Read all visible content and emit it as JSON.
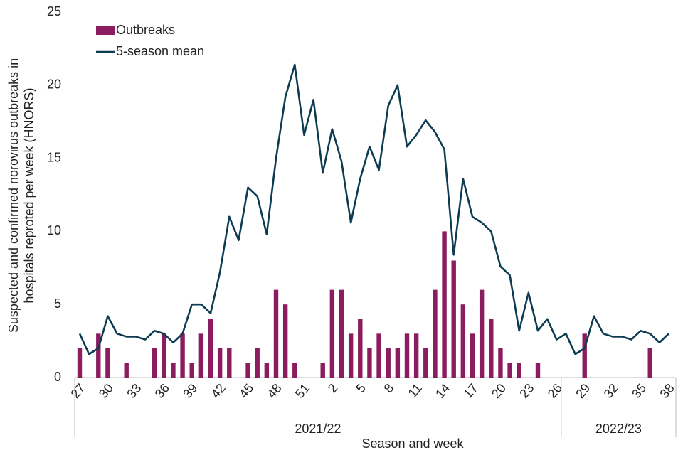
{
  "chart_data": {
    "type": "bar_line",
    "ylabel": [
      "Suspected and confirmed norovirus outbreaks in",
      "hospitals  reproted per week (HNORS)"
    ],
    "xlabel": "Season and week",
    "ylim": [
      0,
      25
    ],
    "yticks": [
      0,
      5,
      10,
      15,
      20,
      25
    ],
    "legend": "top-left",
    "groups": [
      {
        "label": "2021/22",
        "categories": [
          "27",
          null,
          null,
          "30",
          null,
          null,
          "33",
          null,
          null,
          "36",
          null,
          null,
          "39",
          null,
          null,
          "42",
          null,
          null,
          "45",
          null,
          null,
          "48",
          null,
          null,
          "51",
          null,
          null,
          "2",
          null,
          null,
          "5",
          null,
          null,
          "8",
          null,
          null,
          "11",
          null,
          null,
          "14",
          null,
          null,
          "17",
          null,
          null,
          "20",
          null,
          null,
          "23",
          null,
          null,
          "26"
        ]
      },
      {
        "label": "2022/23",
        "categories": [
          null,
          null,
          "29",
          null,
          null,
          "32",
          null,
          null,
          "35",
          null,
          null,
          "38"
        ]
      }
    ],
    "series": [
      {
        "name": "Outbreaks",
        "kind": "bar",
        "color": "#8a1c5f",
        "values": [
          2,
          0,
          3,
          2,
          0,
          1,
          0,
          0,
          2,
          3,
          1,
          3,
          1,
          3,
          4,
          2,
          2,
          0,
          1,
          2,
          1,
          6,
          5,
          1,
          0,
          0,
          1,
          6,
          6,
          3,
          4,
          2,
          3,
          2,
          2,
          3,
          3,
          2,
          6,
          10,
          8,
          5,
          3,
          6,
          4,
          2,
          1,
          1,
          0,
          1,
          0,
          0,
          0,
          0,
          3,
          0,
          0,
          0,
          0,
          0,
          0,
          2,
          0,
          0
        ]
      },
      {
        "name": "5-season mean",
        "kind": "line",
        "color": "#0d3b52",
        "values": [
          3,
          1.6,
          2,
          4.2,
          3,
          2.8,
          2.8,
          2.6,
          3.2,
          3,
          2.4,
          3,
          5,
          5,
          4.4,
          7.2,
          11,
          9.4,
          13,
          12.4,
          9.8,
          15,
          19.2,
          21.4,
          16.6,
          19,
          14,
          17,
          14.8,
          10.6,
          13.6,
          15.8,
          14.2,
          18.6,
          20,
          15.8,
          16.6,
          17.6,
          16.8,
          15.6,
          8.4,
          13.6,
          11,
          10.6,
          10,
          7.6,
          7,
          3.2,
          5.8,
          3.2,
          4,
          2.6,
          3,
          1.6,
          2,
          4.2,
          3,
          2.8,
          2.8,
          2.6,
          3.2,
          3,
          2.4,
          3
        ]
      }
    ]
  }
}
